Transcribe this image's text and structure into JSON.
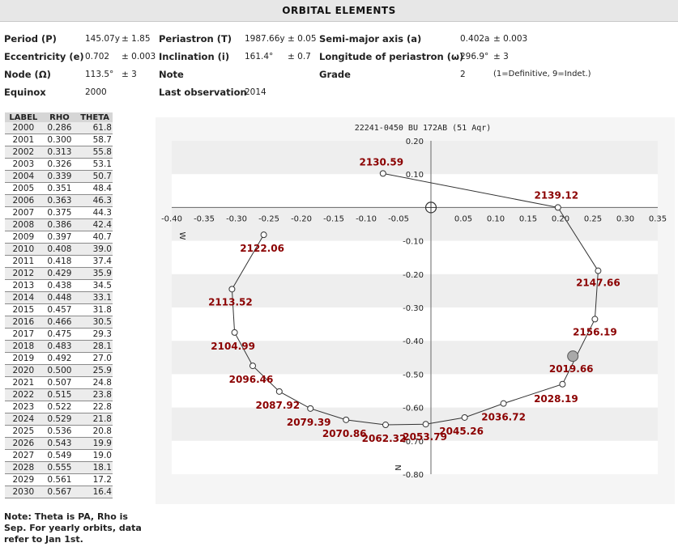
{
  "header": {
    "title": "ORBITAL ELEMENTS"
  },
  "elements": {
    "period_label": "Period (P)",
    "period_value": "145.07y",
    "period_err": "± 1.85",
    "periastron_label": "Periastron (T)",
    "periastron_value": "1987.66y",
    "periastron_err": "± 0.05",
    "sma_label": "Semi-major axis (a)",
    "sma_value": "0.402a",
    "sma_err": "± 0.003",
    "ecc_label": "Eccentricity (e)",
    "ecc_value": "0.702",
    "ecc_err": "± 0.003",
    "inc_label": "Inclination (i)",
    "inc_value": "161.4°",
    "inc_err": "± 0.7",
    "lop_label": "Longitude of periastron (ω)",
    "lop_value": "296.9°",
    "lop_err": "± 3",
    "node_label": "Node (Ω)",
    "node_value": "113.5°",
    "node_err": "± 3",
    "note_label": "Note",
    "grade_label": "Grade",
    "grade_value": "2",
    "grade_note": "(1=Definitive, 9=Indet.)",
    "equinox_label": "Equinox",
    "equinox_value": "2000",
    "lastobs_label": "Last observation",
    "lastobs_value": "2014"
  },
  "ephemeris": {
    "headers": [
      "LABEL",
      "RHO",
      "THETA"
    ],
    "rows": [
      [
        "2000",
        "0.286",
        "61.8"
      ],
      [
        "2001",
        "0.300",
        "58.7"
      ],
      [
        "2002",
        "0.313",
        "55.8"
      ],
      [
        "2003",
        "0.326",
        "53.1"
      ],
      [
        "2004",
        "0.339",
        "50.7"
      ],
      [
        "2005",
        "0.351",
        "48.4"
      ],
      [
        "2006",
        "0.363",
        "46.3"
      ],
      [
        "2007",
        "0.375",
        "44.3"
      ],
      [
        "2008",
        "0.386",
        "42.4"
      ],
      [
        "2009",
        "0.397",
        "40.7"
      ],
      [
        "2010",
        "0.408",
        "39.0"
      ],
      [
        "2011",
        "0.418",
        "37.4"
      ],
      [
        "2012",
        "0.429",
        "35.9"
      ],
      [
        "2013",
        "0.438",
        "34.5"
      ],
      [
        "2014",
        "0.448",
        "33.1"
      ],
      [
        "2015",
        "0.457",
        "31.8"
      ],
      [
        "2016",
        "0.466",
        "30.5"
      ],
      [
        "2017",
        "0.475",
        "29.3"
      ],
      [
        "2018",
        "0.483",
        "28.1"
      ],
      [
        "2019",
        "0.492",
        "27.0"
      ],
      [
        "2020",
        "0.500",
        "25.9"
      ],
      [
        "2021",
        "0.507",
        "24.8"
      ],
      [
        "2022",
        "0.515",
        "23.8"
      ],
      [
        "2023",
        "0.522",
        "22.8"
      ],
      [
        "2024",
        "0.529",
        "21.8"
      ],
      [
        "2025",
        "0.536",
        "20.8"
      ],
      [
        "2026",
        "0.543",
        "19.9"
      ],
      [
        "2027",
        "0.549",
        "19.0"
      ],
      [
        "2028",
        "0.555",
        "18.1"
      ],
      [
        "2029",
        "0.561",
        "17.2"
      ],
      [
        "2030",
        "0.567",
        "16.4"
      ]
    ]
  },
  "note_text": "Note: Theta is PA, Rho is Sep. For yearly orbits, data refer to Jan 1st.",
  "chart_data": {
    "type": "scatter",
    "title": "22241-0450 BU  172AB (51 Aqr)",
    "xlim": [
      -0.4,
      0.35
    ],
    "ylim": [
      -0.8,
      0.2
    ],
    "x_ticks": [
      "-0.40",
      "-0.35",
      "-0.30",
      "-0.25",
      "-0.20",
      "-0.15",
      "-0.10",
      "-0.05",
      "0.05",
      "0.10",
      "0.15",
      "0.20",
      "0.25",
      "0.30",
      "0.35"
    ],
    "x_tick_values": [
      -0.4,
      -0.35,
      -0.3,
      -0.25,
      -0.2,
      -0.15,
      -0.1,
      -0.05,
      0.05,
      0.1,
      0.15,
      0.2,
      0.25,
      0.3,
      0.35
    ],
    "y_ticks": [
      "0.20",
      "0.10",
      "-0.10",
      "-0.20",
      "-0.30",
      "-0.40",
      "-0.50",
      "-0.60",
      "-0.70",
      "-0.80"
    ],
    "y_tick_values": [
      0.2,
      0.1,
      -0.1,
      -0.2,
      -0.3,
      -0.4,
      -0.5,
      -0.6,
      -0.7,
      -0.8
    ],
    "west_label": "W",
    "north_label": "N",
    "orbit": [
      {
        "x": -0.074,
        "y": 0.102,
        "label": "2130.59"
      },
      {
        "x": 0.196,
        "y": 0.0,
        "label": "2139.12"
      },
      {
        "x": 0.258,
        "y": -0.19,
        "label": "2147.66"
      },
      {
        "x": 0.253,
        "y": -0.335,
        "label": "2156.19"
      },
      {
        "x": 0.203,
        "y": -0.53,
        "label": "2028.19"
      },
      {
        "x": 0.112,
        "y": -0.588,
        "label": "2036.72"
      },
      {
        "x": 0.052,
        "y": -0.63,
        "label": "2045.26"
      },
      {
        "x": -0.008,
        "y": -0.65,
        "label": "2053.79"
      },
      {
        "x": -0.07,
        "y": -0.652,
        "label": "2062.32"
      },
      {
        "x": -0.131,
        "y": -0.637,
        "label": "2070.86"
      },
      {
        "x": -0.186,
        "y": -0.603,
        "label": "2079.39"
      },
      {
        "x": -0.234,
        "y": -0.552,
        "label": "2087.92"
      },
      {
        "x": -0.275,
        "y": -0.475,
        "label": "2096.46"
      },
      {
        "x": -0.303,
        "y": -0.375,
        "label": "2104.99"
      },
      {
        "x": -0.307,
        "y": -0.245,
        "label": "2113.52"
      },
      {
        "x": -0.258,
        "y": -0.082,
        "label": "2122.06"
      }
    ],
    "current_position": {
      "x": 0.219,
      "y": -0.446,
      "label": "2019.66"
    },
    "primary": {
      "x": 0.0,
      "y": 0.0
    }
  }
}
